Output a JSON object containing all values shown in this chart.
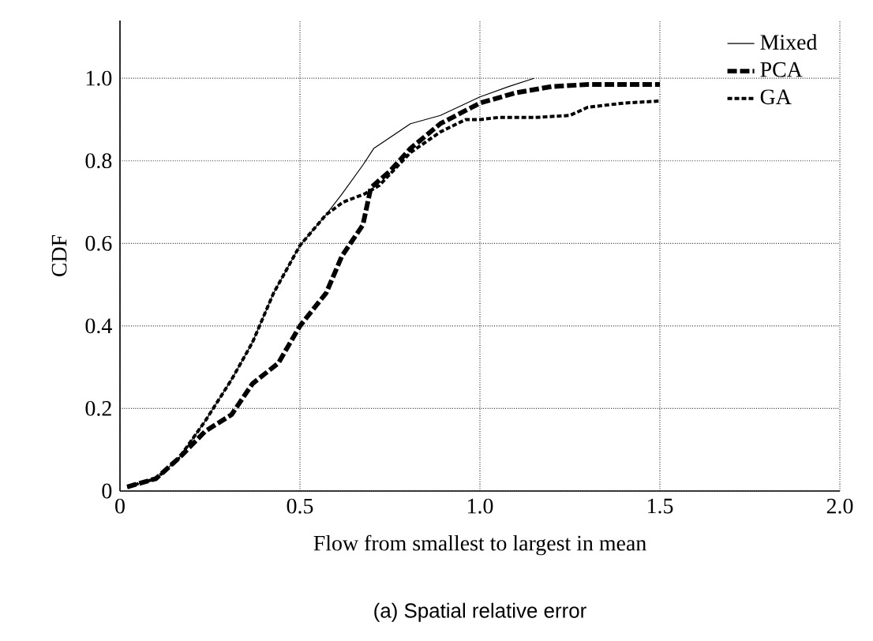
{
  "chart_data": {
    "type": "line",
    "xlabel": "Flow from smallest to largest in mean",
    "ylabel": "CDF",
    "annotations": [
      "(a) Spatial relative error"
    ],
    "xlim": [
      0,
      2.0
    ],
    "ylim": [
      0,
      1.14
    ],
    "xticks": [
      0,
      0.5,
      {
        "value": 1.0,
        "label": "1.0"
      },
      1.5,
      {
        "value": 2.0,
        "label": "2.0"
      }
    ],
    "yticks": [
      0,
      0.2,
      0.4,
      0.6,
      0.8,
      {
        "value": 1.0,
        "label": "1.0"
      }
    ],
    "grid": true,
    "legend": "top right",
    "marker": "none",
    "series": [
      {
        "name": "Mixed",
        "color": "#000000",
        "line_style": "solid",
        "x": [
          0.02,
          0.1,
          0.164,
          0.237,
          0.31,
          0.368,
          0.427,
          0.5,
          0.573,
          0.617,
          0.675,
          0.705,
          0.807,
          0.89,
          1.0,
          1.08,
          1.15
        ],
        "values": [
          0.01,
          0.03,
          0.08,
          0.17,
          0.27,
          0.36,
          0.48,
          0.595,
          0.67,
          0.72,
          0.79,
          0.83,
          0.89,
          0.91,
          0.955,
          0.98,
          1.0
        ]
      },
      {
        "name": "PCA",
        "color": "#000000",
        "line_style": "dashed",
        "x": [
          0.02,
          0.1,
          0.164,
          0.237,
          0.31,
          0.368,
          0.44,
          0.5,
          0.573,
          0.617,
          0.675,
          0.697,
          0.75,
          0.807,
          0.89,
          1.0,
          1.1,
          1.2,
          1.3,
          1.4,
          1.5
        ],
        "values": [
          0.01,
          0.03,
          0.08,
          0.145,
          0.185,
          0.26,
          0.31,
          0.4,
          0.48,
          0.57,
          0.645,
          0.735,
          0.775,
          0.83,
          0.89,
          0.94,
          0.965,
          0.98,
          0.985,
          0.985,
          0.985
        ]
      },
      {
        "name": "GA",
        "color": "#000000",
        "line_style": "dotted",
        "x": [
          0.02,
          0.1,
          0.164,
          0.237,
          0.31,
          0.368,
          0.427,
          0.5,
          0.573,
          0.62,
          0.68,
          0.72,
          0.807,
          0.89,
          0.96,
          1.0,
          1.05,
          1.15,
          1.25,
          1.3,
          1.4,
          1.5
        ],
        "values": [
          0.01,
          0.03,
          0.08,
          0.17,
          0.27,
          0.36,
          0.48,
          0.595,
          0.67,
          0.7,
          0.72,
          0.74,
          0.82,
          0.87,
          0.9,
          0.9,
          0.905,
          0.905,
          0.91,
          0.93,
          0.94,
          0.945
        ]
      }
    ]
  }
}
